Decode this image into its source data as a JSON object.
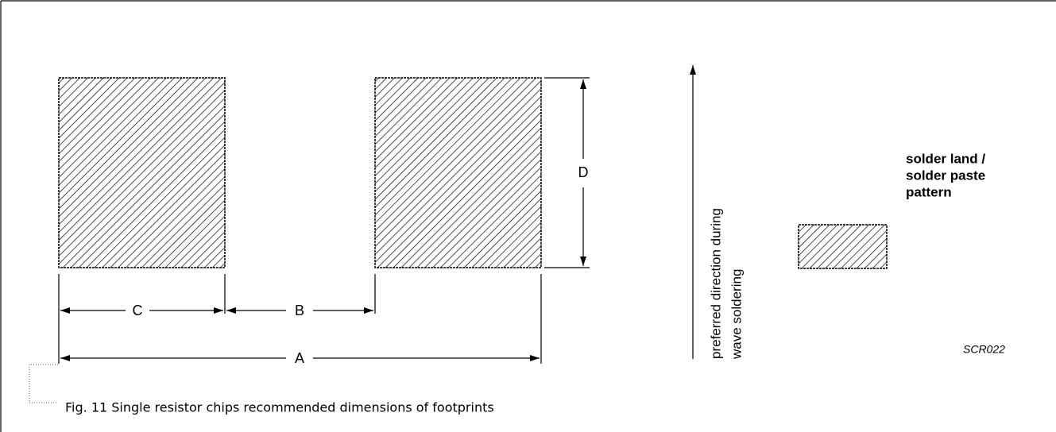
{
  "dimensions": {
    "A": "A",
    "B": "B",
    "C": "C",
    "D": "D"
  },
  "direction_label": [
    "preferred direction during",
    "wave soldering"
  ],
  "legend": [
    "solder land /",
    "solder paste",
    "pattern"
  ],
  "code": "SCR022",
  "caption": "Fig. 11  Single resistor chips recommended dimensions of footprints"
}
